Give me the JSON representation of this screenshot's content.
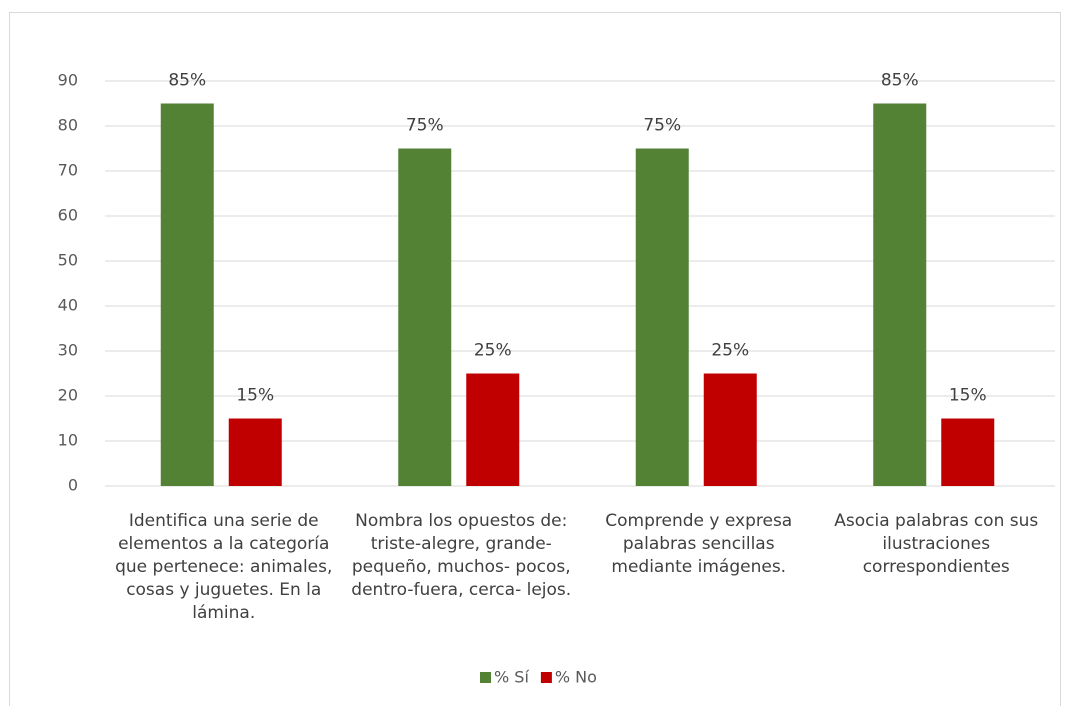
{
  "chart_data": {
    "type": "bar",
    "categories": [
      "Identifica una serie de elementos a la categoría que pertenece: animales, cosas y juguetes. En la lámina.",
      "Nombra los opuestos de: triste-alegre, grande- pequeño, muchos- pocos, dentro-fuera, cerca- lejos.",
      "Comprende y expresa palabras sencillas mediante imágenes.",
      "Asocia palabras con sus ilustraciones correspondientes"
    ],
    "series": [
      {
        "name": "% Sí",
        "color": "#548235",
        "values": [
          85,
          75,
          75,
          85
        ],
        "value_labels": [
          "85%",
          "75%",
          "75%",
          "85%"
        ]
      },
      {
        "name": "% No",
        "color": "#c00000",
        "values": [
          15,
          25,
          25,
          15
        ],
        "value_labels": [
          "15%",
          "25%",
          "25%",
          "15%"
        ]
      }
    ],
    "ylim": [
      0,
      90
    ],
    "yticks": [
      0,
      10,
      20,
      30,
      40,
      50,
      60,
      70,
      80,
      90
    ],
    "grid": true,
    "legend": "bottom"
  }
}
